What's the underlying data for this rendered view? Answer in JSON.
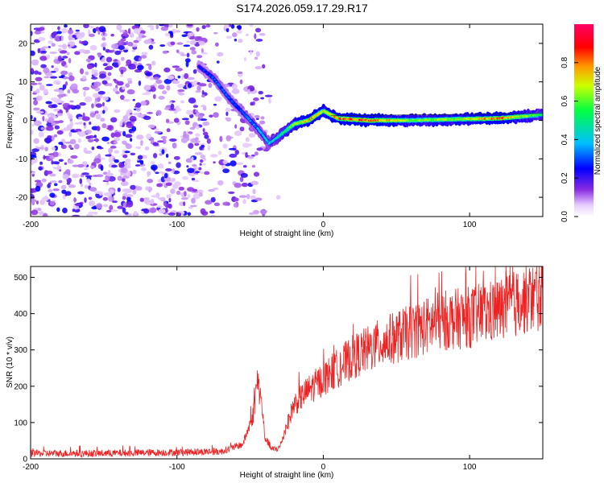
{
  "title": "S174.2026.059.17.29.R17",
  "chart_data": [
    {
      "type": "heatmap",
      "title": "",
      "xlabel": "Height of straight line (km)",
      "ylabel": "Frequency (Hz)",
      "xlim": [
        -200,
        150
      ],
      "ylim": [
        -25,
        25
      ],
      "xticks": [
        -200,
        -100,
        0,
        100
      ],
      "yticks": [
        -20,
        -10,
        0,
        10,
        20
      ],
      "colorbar": {
        "label": "Normalized spectral amplitude",
        "range": [
          0.0,
          1.0
        ],
        "ticks": [
          "0.0",
          "0.2",
          "0.4",
          "0.6",
          "0.8"
        ],
        "colors": [
          "#ffffff",
          "#c9a0ff",
          "#8a2be2",
          "#0000ff",
          "#00bfff",
          "#00ff66",
          "#ffff00",
          "#ff6600",
          "#ff0000",
          "#ff0066"
        ]
      },
      "ridge": {
        "description_points": [
          {
            "x": -85,
            "y": 14,
            "amp": 0.25
          },
          {
            "x": -75,
            "y": 11,
            "amp": 0.3
          },
          {
            "x": -65,
            "y": 6,
            "amp": 0.3
          },
          {
            "x": -55,
            "y": 2,
            "amp": 0.3
          },
          {
            "x": -45,
            "y": -2,
            "amp": 0.35
          },
          {
            "x": -37,
            "y": -6,
            "amp": 0.4
          },
          {
            "x": -30,
            "y": -4,
            "amp": 0.45
          },
          {
            "x": -20,
            "y": -1,
            "amp": 0.6
          },
          {
            "x": -10,
            "y": 0,
            "amp": 0.75
          },
          {
            "x": 0,
            "y": 2.5,
            "amp": 0.7
          },
          {
            "x": 10,
            "y": 0.5,
            "amp": 0.8
          },
          {
            "x": 30,
            "y": 0,
            "amp": 0.85
          },
          {
            "x": 60,
            "y": 0,
            "amp": 0.6
          },
          {
            "x": 90,
            "y": 0.3,
            "amp": 0.65
          },
          {
            "x": 120,
            "y": 0.5,
            "amp": 0.8
          },
          {
            "x": 150,
            "y": 1.5,
            "amp": 0.5
          }
        ]
      }
    },
    {
      "type": "line",
      "title": "",
      "xlabel": "Height of straight line (km)",
      "ylabel": "SNR (10 * v/v)",
      "xlim": [
        -200,
        150
      ],
      "ylim": [
        0,
        530
      ],
      "xticks": [
        -200,
        -100,
        0,
        100
      ],
      "yticks": [
        0,
        100,
        200,
        300,
        400,
        500
      ],
      "series": [
        {
          "name": "SNR",
          "color": "#ee2222",
          "x": [
            -200,
            -150,
            -100,
            -70,
            -55,
            -48,
            -45,
            -42,
            -40,
            -35,
            -30,
            -25,
            -20,
            -10,
            0,
            10,
            20,
            40,
            60,
            80,
            100,
            120,
            140,
            150
          ],
          "values": [
            15,
            15,
            18,
            20,
            40,
            120,
            220,
            150,
            60,
            25,
            30,
            90,
            150,
            190,
            220,
            250,
            280,
            320,
            350,
            380,
            390,
            410,
            440,
            450
          ]
        }
      ]
    }
  ]
}
